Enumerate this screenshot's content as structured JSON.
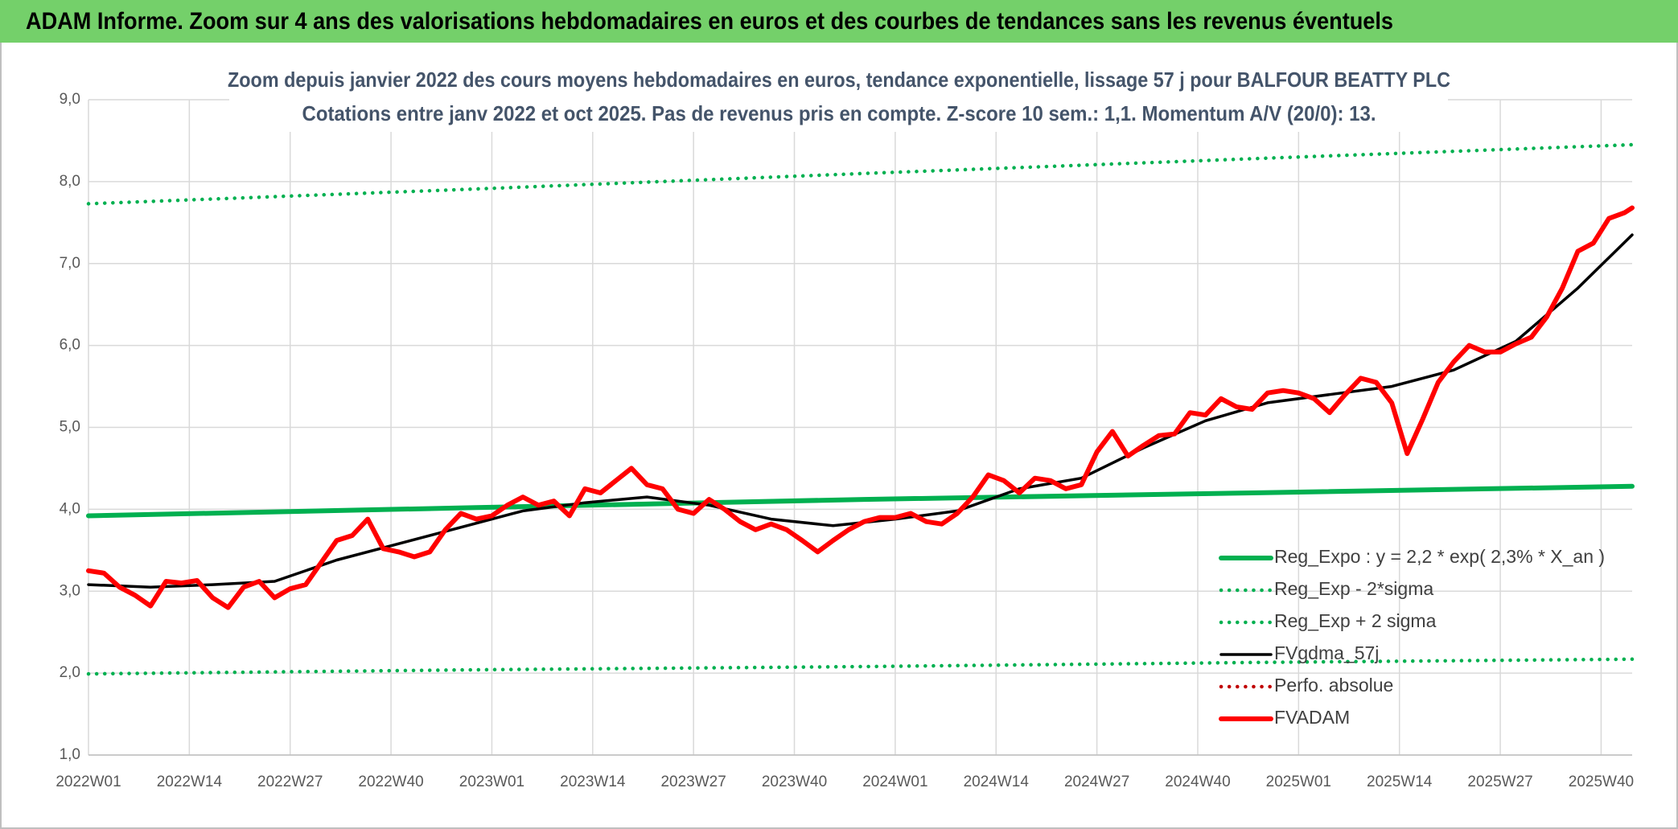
{
  "chart_data": {
    "type": "line",
    "title": "ADAM Informe. Zoom sur 4 ans des valorisations hebdomadaires en euros et des courbes de tendances sans les revenus éventuels",
    "subtitle": [
      "Zoom depuis janvier 2022 des cours moyens hebdomadaires en euros, tendance exponentielle, lissage 57 j pour BALFOUR BEATTY PLC",
      "Cotations entre janv 2022 et oct 2025. Pas de revenus pris en compte. Z-score 10 sem.: 1,1. Momentum A/V (20/0): 13."
    ],
    "xlim": [
      0,
      199
    ],
    "xticks": [
      {
        "value": 0,
        "label": "2022W01"
      },
      {
        "value": 13,
        "label": "2022W14"
      },
      {
        "value": 26,
        "label": "2022W27"
      },
      {
        "value": 39,
        "label": "2022W40"
      },
      {
        "value": 52,
        "label": "2023W01"
      },
      {
        "value": 65,
        "label": "2023W14"
      },
      {
        "value": 78,
        "label": "2023W27"
      },
      {
        "value": 91,
        "label": "2023W40"
      },
      {
        "value": 104,
        "label": "2024W01"
      },
      {
        "value": 117,
        "label": "2024W14"
      },
      {
        "value": 130,
        "label": "2024W27"
      },
      {
        "value": 143,
        "label": "2024W40"
      },
      {
        "value": 156,
        "label": "2025W01"
      },
      {
        "value": 169,
        "label": "2025W14"
      },
      {
        "value": 182,
        "label": "2025W27"
      },
      {
        "value": 195,
        "label": "2025W40"
      }
    ],
    "ylim": [
      1,
      9
    ],
    "yticks": [
      {
        "value": 1,
        "label": "1,0"
      },
      {
        "value": 2,
        "label": "2,0"
      },
      {
        "value": 3,
        "label": "3,0"
      },
      {
        "value": 4,
        "label": "4,0"
      },
      {
        "value": 5,
        "label": "5,0"
      },
      {
        "value": 6,
        "label": "6,0"
      },
      {
        "value": 7,
        "label": "7,0"
      },
      {
        "value": 8,
        "label": "8,0"
      },
      {
        "value": 9,
        "label": "9,0"
      }
    ],
    "grid": true,
    "legend": "right",
    "series": [
      {
        "name": "Reg_Expo : y = 2,2 * exp( 2,3% *  X_an )",
        "color": "#00b050",
        "style": "solid",
        "x": [
          0,
          50,
          100,
          150,
          199
        ],
        "values": [
          3.92,
          4.02,
          4.12,
          4.2,
          4.28
        ]
      },
      {
        "name": "Reg_Exp - 2*sigma",
        "color": "#00b050",
        "style": "dotted",
        "x": [
          0,
          50,
          100,
          150,
          199
        ],
        "values": [
          1.99,
          2.04,
          2.08,
          2.13,
          2.17
        ]
      },
      {
        "name": "Reg_Exp + 2 sigma",
        "color": "#00b050",
        "style": "dotted",
        "x": [
          0,
          50,
          100,
          150,
          199
        ],
        "values": [
          7.73,
          7.91,
          8.1,
          8.28,
          8.45
        ]
      },
      {
        "name": "FVgdma_57j",
        "color": "#000000",
        "style": "solid",
        "x": [
          0,
          8,
          16,
          24,
          32,
          40,
          48,
          56,
          64,
          72,
          80,
          88,
          96,
          104,
          112,
          120,
          128,
          136,
          144,
          152,
          160,
          168,
          176,
          184,
          192,
          199
        ],
        "values": [
          3.08,
          3.05,
          3.08,
          3.12,
          3.38,
          3.58,
          3.78,
          3.98,
          4.08,
          4.15,
          4.05,
          3.88,
          3.8,
          3.88,
          3.98,
          4.25,
          4.38,
          4.75,
          5.08,
          5.3,
          5.4,
          5.5,
          5.7,
          6.05,
          6.7,
          7.35
        ]
      },
      {
        "name": "Perfo. absolue",
        "color": "#c00000",
        "style": "dotted",
        "x": [],
        "values": []
      },
      {
        "name": "FVADAM",
        "color": "#ff0000",
        "style": "solid",
        "x": [
          0,
          2,
          4,
          6,
          8,
          10,
          12,
          14,
          16,
          18,
          20,
          22,
          24,
          26,
          28,
          30,
          32,
          34,
          36,
          38,
          40,
          42,
          44,
          46,
          48,
          50,
          52,
          54,
          56,
          58,
          60,
          62,
          64,
          66,
          68,
          70,
          72,
          74,
          76,
          78,
          80,
          82,
          84,
          86,
          88,
          90,
          92,
          94,
          96,
          98,
          100,
          102,
          104,
          106,
          108,
          110,
          112,
          114,
          116,
          118,
          120,
          122,
          124,
          126,
          128,
          130,
          132,
          134,
          136,
          138,
          140,
          142,
          144,
          146,
          148,
          150,
          152,
          154,
          156,
          158,
          160,
          162,
          164,
          166,
          168,
          170,
          172,
          174,
          176,
          178,
          180,
          182,
          184,
          186,
          188,
          190,
          192,
          194,
          196,
          198,
          199
        ],
        "values": [
          3.25,
          3.22,
          3.05,
          2.95,
          2.82,
          3.12,
          3.1,
          3.13,
          2.92,
          2.8,
          3.05,
          3.12,
          2.92,
          3.03,
          3.08,
          3.35,
          3.62,
          3.68,
          3.88,
          3.52,
          3.48,
          3.42,
          3.48,
          3.75,
          3.95,
          3.88,
          3.92,
          4.05,
          4.15,
          4.05,
          4.1,
          3.92,
          4.25,
          4.2,
          4.35,
          4.5,
          4.3,
          4.25,
          4.0,
          3.95,
          4.12,
          4.0,
          3.85,
          3.75,
          3.82,
          3.75,
          3.62,
          3.48,
          3.62,
          3.75,
          3.85,
          3.9,
          3.9,
          3.95,
          3.85,
          3.82,
          3.95,
          4.15,
          4.42,
          4.35,
          4.2,
          4.38,
          4.35,
          4.25,
          4.3,
          4.7,
          4.95,
          4.65,
          4.78,
          4.9,
          4.92,
          5.18,
          5.15,
          5.35,
          5.25,
          5.22,
          5.42,
          5.45,
          5.42,
          5.35,
          5.18,
          5.4,
          5.6,
          5.55,
          5.3,
          4.68,
          5.1,
          5.55,
          5.8,
          6.0,
          5.92,
          5.92,
          6.02,
          6.1,
          6.35,
          6.7,
          7.15,
          7.25,
          7.55,
          7.62,
          7.68
        ]
      }
    ]
  }
}
